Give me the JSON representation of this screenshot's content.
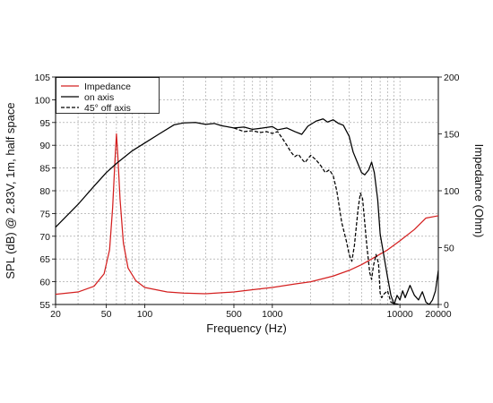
{
  "chart_data": {
    "type": "line",
    "x_scale": "log",
    "xlim": [
      20,
      20000
    ],
    "ylim_left": [
      55,
      105
    ],
    "ylim_right": [
      0,
      200
    ],
    "xlabel": "Frequency (Hz)",
    "ylabel_left": "SPL (dB) @ 2.83V, 1m, half space",
    "ylabel_right": "Impedance (Ohm)",
    "x_tick_labels": [
      "20",
      "50",
      "100",
      "500",
      "1000",
      "10000",
      "20000"
    ],
    "y_left_tick_labels": [
      "55",
      "60",
      "65",
      "70",
      "75",
      "80",
      "85",
      "90",
      "95",
      "100",
      "105"
    ],
    "y_right_tick_labels": [
      "0",
      "50",
      "100",
      "150",
      "200"
    ],
    "grid": true,
    "legend_position": "top-left",
    "series": [
      {
        "name": "Impedance",
        "axis": "right",
        "color": "#d42020",
        "style": "solid",
        "points": [
          [
            20,
            9
          ],
          [
            30,
            11
          ],
          [
            40,
            16
          ],
          [
            48,
            27
          ],
          [
            53,
            48
          ],
          [
            56,
            85
          ],
          [
            58.5,
            128
          ],
          [
            60,
            150
          ],
          [
            61.5,
            131
          ],
          [
            64,
            93
          ],
          [
            68,
            54
          ],
          [
            74,
            32
          ],
          [
            85,
            21
          ],
          [
            100,
            15
          ],
          [
            150,
            11
          ],
          [
            200,
            10
          ],
          [
            300,
            9.5
          ],
          [
            500,
            11
          ],
          [
            700,
            13
          ],
          [
            1000,
            15
          ],
          [
            1500,
            18
          ],
          [
            2000,
            20
          ],
          [
            3000,
            25
          ],
          [
            4000,
            30
          ],
          [
            5000,
            35
          ],
          [
            6000,
            40
          ],
          [
            8000,
            48
          ],
          [
            10000,
            56
          ],
          [
            13000,
            66
          ],
          [
            16000,
            76
          ],
          [
            20000,
            78
          ]
        ]
      },
      {
        "name": "on axis",
        "axis": "left",
        "color": "#000000",
        "style": "solid",
        "points": [
          [
            20,
            72
          ],
          [
            30,
            77
          ],
          [
            40,
            81
          ],
          [
            50,
            84
          ],
          [
            60,
            86
          ],
          [
            70,
            87.5
          ],
          [
            80,
            88.8
          ],
          [
            100,
            90.5
          ],
          [
            130,
            92.5
          ],
          [
            170,
            94.5
          ],
          [
            200,
            94.9
          ],
          [
            250,
            95
          ],
          [
            300,
            94.6
          ],
          [
            350,
            94.8
          ],
          [
            400,
            94.3
          ],
          [
            500,
            93.8
          ],
          [
            600,
            94
          ],
          [
            700,
            93.5
          ],
          [
            800,
            93.7
          ],
          [
            1000,
            94.1
          ],
          [
            1100,
            93.4
          ],
          [
            1300,
            93.8
          ],
          [
            1500,
            93
          ],
          [
            1700,
            92.4
          ],
          [
            1900,
            94.2
          ],
          [
            2200,
            95.3
          ],
          [
            2500,
            95.8
          ],
          [
            2700,
            95.1
          ],
          [
            3000,
            95.6
          ],
          [
            3300,
            94.8
          ],
          [
            3600,
            94.4
          ],
          [
            4000,
            92
          ],
          [
            4300,
            88.5
          ],
          [
            4600,
            86.5
          ],
          [
            5000,
            84
          ],
          [
            5300,
            83.5
          ],
          [
            5700,
            84.6
          ],
          [
            6000,
            86.3
          ],
          [
            6300,
            84
          ],
          [
            6700,
            78
          ],
          [
            7000,
            70.5
          ],
          [
            7500,
            65.6
          ],
          [
            8000,
            61
          ],
          [
            8500,
            57
          ],
          [
            9000,
            55
          ],
          [
            9500,
            57
          ],
          [
            10000,
            56
          ],
          [
            10500,
            58
          ],
          [
            11000,
            56.5
          ],
          [
            12000,
            59.2
          ],
          [
            13000,
            57
          ],
          [
            14000,
            56
          ],
          [
            15000,
            57.8
          ],
          [
            16000,
            55.5
          ],
          [
            17000,
            55
          ],
          [
            18000,
            56
          ],
          [
            19000,
            58
          ],
          [
            20000,
            62.5
          ]
        ]
      },
      {
        "name": "45° off axis",
        "axis": "left",
        "color": "#000000",
        "style": "dashed",
        "points": [
          [
            500,
            93.8
          ],
          [
            600,
            93
          ],
          [
            700,
            93.2
          ],
          [
            800,
            92.8
          ],
          [
            900,
            93
          ],
          [
            1000,
            92.6
          ],
          [
            1100,
            93
          ],
          [
            1200,
            91.5
          ],
          [
            1300,
            90
          ],
          [
            1400,
            88.5
          ],
          [
            1500,
            87.5
          ],
          [
            1600,
            88
          ],
          [
            1700,
            87
          ],
          [
            1800,
            86.2
          ],
          [
            2000,
            87.8
          ],
          [
            2200,
            86.8
          ],
          [
            2400,
            85.5
          ],
          [
            2600,
            84
          ],
          [
            2800,
            84.6
          ],
          [
            3000,
            83.3
          ],
          [
            3200,
            80
          ],
          [
            3500,
            73
          ],
          [
            3800,
            69
          ],
          [
            4000,
            66
          ],
          [
            4200,
            64.5
          ],
          [
            4400,
            68
          ],
          [
            4700,
            76
          ],
          [
            4900,
            79.5
          ],
          [
            5100,
            78.2
          ],
          [
            5300,
            73
          ],
          [
            5500,
            68
          ],
          [
            5800,
            62
          ],
          [
            6000,
            60.5
          ],
          [
            6200,
            63.5
          ],
          [
            6500,
            66
          ],
          [
            6800,
            64
          ],
          [
            7000,
            57.5
          ],
          [
            7200,
            56.5
          ],
          [
            7500,
            57.3
          ],
          [
            8000,
            58
          ],
          [
            8500,
            55.5
          ],
          [
            9000,
            55.2
          ],
          [
            10000,
            55
          ]
        ]
      }
    ]
  }
}
